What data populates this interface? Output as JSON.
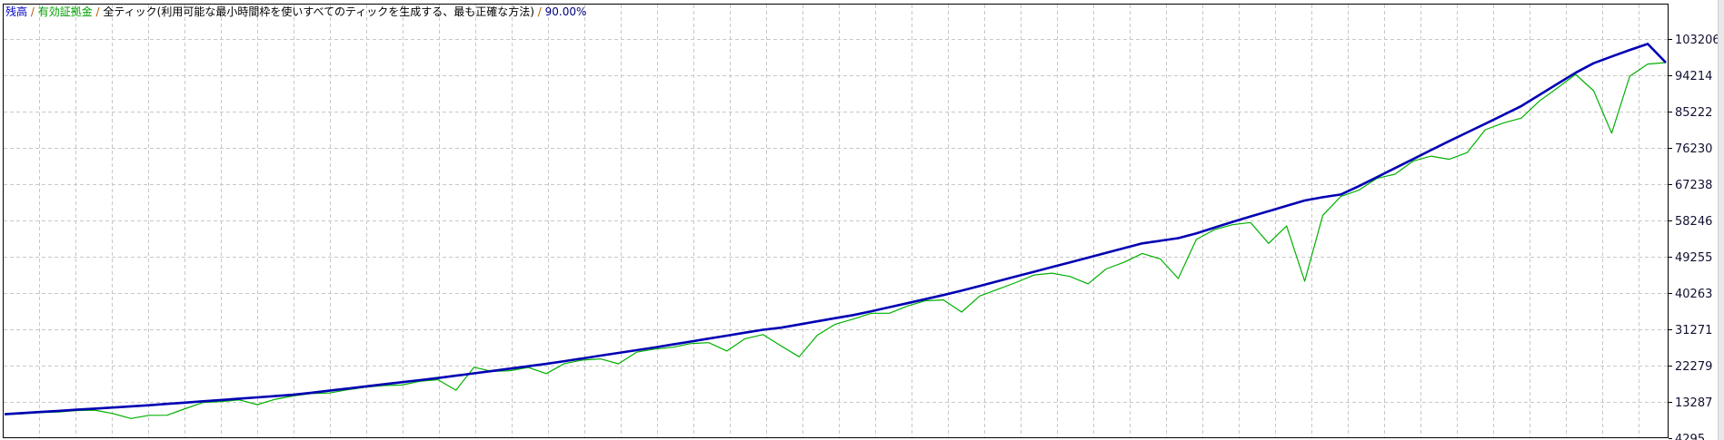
{
  "header": {
    "balance_label": "残高",
    "equity_label": "有効証拠金",
    "separator": " / ",
    "model": "全ティック(利用可能な最小時間枠を使いすべてのティックを生成する、最も正確な方法)",
    "quality": "90.00%"
  },
  "colors": {
    "balance": "#0000b4",
    "equity": "#00b000",
    "grid": "#c8c8c8"
  },
  "chart_data": {
    "type": "line",
    "title": "",
    "xlabel": "",
    "ylabel": "",
    "ylim": [
      4295,
      103206
    ],
    "y_ticks": [
      "103206",
      "94214",
      "85222",
      "76230",
      "67238",
      "58246",
      "49255",
      "40263",
      "31271",
      "22279",
      "13287",
      "4295"
    ],
    "grid": true,
    "series": [
      {
        "name": "残高",
        "color": "#0000b4",
        "values": [
          10230,
          10510,
          10790,
          11070,
          11350,
          11630,
          11900,
          12180,
          12460,
          12790,
          13110,
          13440,
          13760,
          14090,
          14410,
          14730,
          15060,
          15560,
          16080,
          16600,
          17120,
          17640,
          18160,
          18680,
          19200,
          19780,
          20370,
          20950,
          21530,
          22120,
          22700,
          23380,
          24060,
          24740,
          25420,
          26100,
          26780,
          27510,
          28240,
          28970,
          29700,
          30430,
          31160,
          31670,
          32460,
          33250,
          34030,
          34800,
          35750,
          36750,
          37750,
          38760,
          39760,
          40840,
          42010,
          43180,
          44350,
          45520,
          46690,
          47870,
          49040,
          50210,
          51390,
          52560,
          53220,
          53860,
          55040,
          56460,
          57880,
          59230,
          60550,
          61870,
          63190,
          64000,
          64680,
          66750,
          68980,
          71210,
          73440,
          75680,
          77890,
          80050,
          82220,
          84390,
          86600,
          89350,
          92100,
          94850,
          97200,
          98870,
          100480,
          102000,
          97360
        ]
      },
      {
        "name": "有効証拠金",
        "color": "#00b000",
        "values": [
          10130,
          10310,
          10640,
          10770,
          11150,
          11230,
          10400,
          9180,
          9960,
          9990,
          11610,
          13140,
          13360,
          13790,
          12610,
          13930,
          14760,
          15360,
          15480,
          16300,
          16920,
          17340,
          17460,
          18380,
          18800,
          16180,
          21870,
          20850,
          21030,
          21820,
          20300,
          22780,
          23660,
          23940,
          22720,
          25600,
          26380,
          26810,
          27740,
          27970,
          25900,
          28930,
          29960,
          27170,
          24460,
          29750,
          32530,
          33800,
          35250,
          35250,
          37050,
          38360,
          38560,
          35540,
          39510,
          41180,
          42850,
          44720,
          45190,
          44370,
          42540,
          46210,
          47890,
          50060,
          48720,
          43860,
          53540,
          55960,
          57180,
          57730,
          52550,
          56870,
          43190,
          59500,
          64180,
          65750,
          68680,
          69710,
          72940,
          74180,
          73390,
          75050,
          80720,
          82390,
          83600,
          87850,
          91100,
          94450,
          90400,
          79870,
          93980,
          97000,
          97360
        ]
      }
    ]
  }
}
